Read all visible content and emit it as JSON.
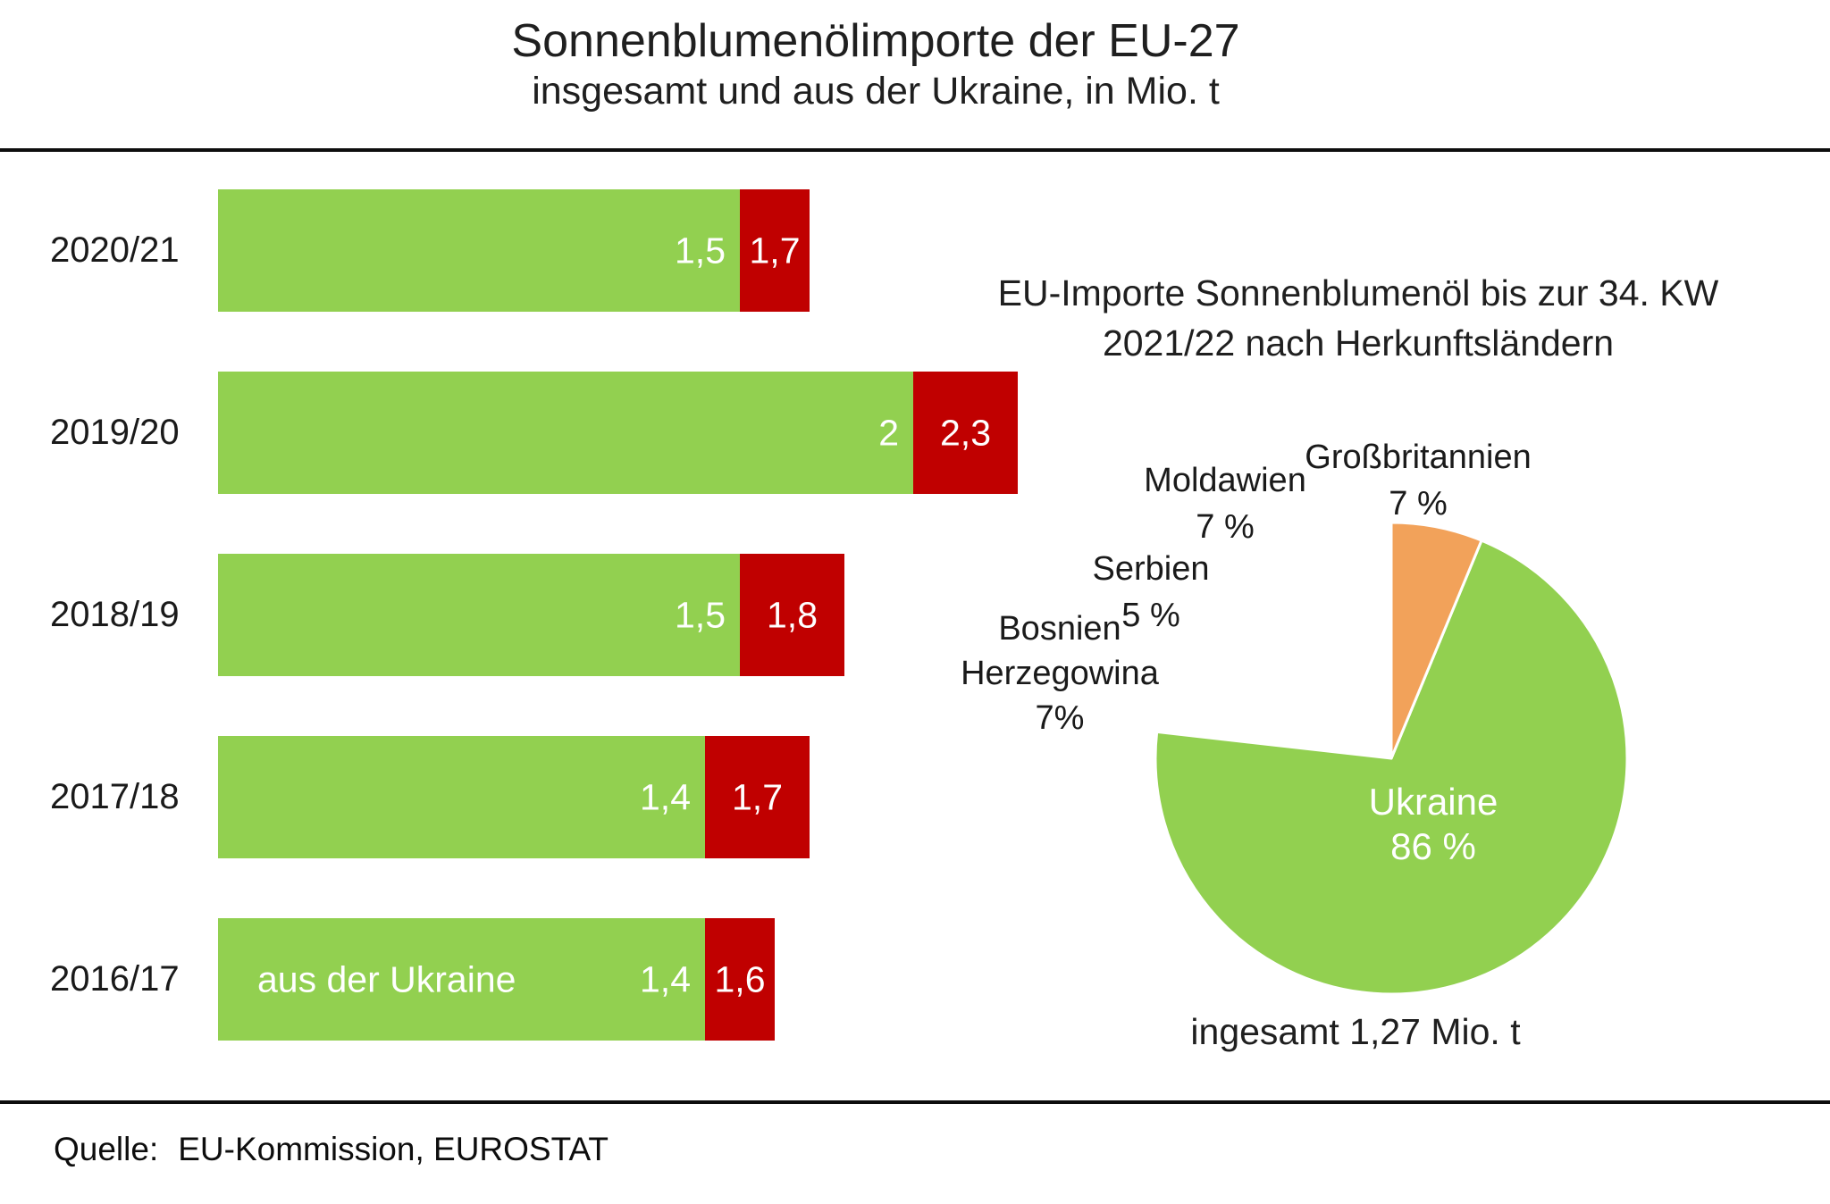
{
  "header": {
    "title": "Sonnenblumenölimporte der EU-27",
    "subtitle": "insgesamt und aus der Ukraine, in Mio. t"
  },
  "footer": {
    "source_label": "Quelle:",
    "source_value": "EU-Kommission, EUROSTAT"
  },
  "colors": {
    "green": "#92d050",
    "red": "#c00000",
    "orange": "#f2a25a",
    "yellow": "#ffc000",
    "dark_green": "#00a551",
    "text": "#1a1a1a"
  },
  "chart_data": [
    {
      "type": "bar",
      "orientation": "horizontal",
      "categories": [
        "2020/21",
        "2019/20",
        "2018/19",
        "2017/18",
        "2016/17"
      ],
      "series": [
        {
          "name": "aus der Ukraine",
          "color_key": "green",
          "values": [
            1.5,
            2.0,
            1.5,
            1.4,
            1.4
          ],
          "labels": [
            "1,5",
            "2",
            "1,5",
            "1,4",
            "1,4"
          ]
        },
        {
          "name": "insgesamt",
          "color_key": "red",
          "values": [
            1.7,
            2.3,
            1.8,
            1.7,
            1.6
          ],
          "labels": [
            "1,7",
            "2,3",
            "1,8",
            "1,7",
            "1,6"
          ]
        }
      ],
      "xlim": [
        0,
        2.4
      ],
      "grid": false,
      "value_format": "decimal-comma",
      "note_unit": "Mio. t"
    },
    {
      "type": "pie",
      "title_line1": "EU-Importe Sonnenblumenöl bis zur 34. KW",
      "title_line2": "2021/22 nach Herkunftsländern",
      "slices": [
        {
          "id": "ukraine",
          "label_lines": [
            "Ukraine"
          ],
          "pct_label": "86 %",
          "value": 86,
          "color_key": "green"
        },
        {
          "id": "bosnien-herzegowina",
          "label_lines": [
            "Bosnien",
            "Herzegowina"
          ],
          "pct_label": "7%",
          "value": 7,
          "color_key": "yellow"
        },
        {
          "id": "serbien",
          "label_lines": [
            "Serbien"
          ],
          "pct_label": "5 %",
          "value": 5,
          "color_key": "dark_green"
        },
        {
          "id": "moldawien",
          "label_lines": [
            "Moldawien"
          ],
          "pct_label": "7 %",
          "value": 7,
          "color_key": "red"
        },
        {
          "id": "grossbritannien",
          "label_lines": [
            "Großbritannien"
          ],
          "pct_label": "7 %",
          "value": 7,
          "color_key": "orange"
        }
      ],
      "total_label": "ingesamt 1,27 Mio. t"
    }
  ]
}
